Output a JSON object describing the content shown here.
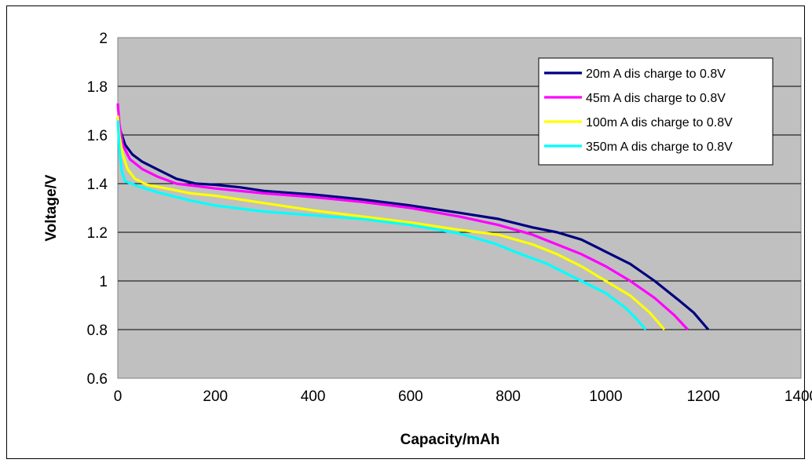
{
  "chart_data": {
    "type": "line",
    "xlabel": "Capacity/mAh",
    "ylabel": "Voltage/V",
    "xlim": [
      0,
      1400
    ],
    "ylim": [
      0.6,
      2
    ],
    "x_ticks": [
      "0",
      "200",
      "400",
      "600",
      "800",
      "1000",
      "1200",
      "1400"
    ],
    "y_ticks": [
      "0.6",
      "0.8",
      "1",
      "1.2",
      "1.4",
      "1.6",
      "1.8",
      "2"
    ],
    "grid": "horizontal",
    "plot_background": "#c0c0c0",
    "legend_position": "top-right",
    "series": [
      {
        "name": "20m A dis charge to 0.8V",
        "color": "#000080",
        "points": [
          [
            0,
            1.67
          ],
          [
            5,
            1.62
          ],
          [
            15,
            1.56
          ],
          [
            30,
            1.52
          ],
          [
            50,
            1.49
          ],
          [
            80,
            1.46
          ],
          [
            120,
            1.42
          ],
          [
            160,
            1.4
          ],
          [
            200,
            1.395
          ],
          [
            250,
            1.385
          ],
          [
            300,
            1.37
          ],
          [
            400,
            1.355
          ],
          [
            500,
            1.335
          ],
          [
            600,
            1.31
          ],
          [
            700,
            1.28
          ],
          [
            780,
            1.255
          ],
          [
            850,
            1.22
          ],
          [
            900,
            1.2
          ],
          [
            950,
            1.17
          ],
          [
            1000,
            1.12
          ],
          [
            1050,
            1.07
          ],
          [
            1100,
            1.0
          ],
          [
            1150,
            0.92
          ],
          [
            1180,
            0.87
          ],
          [
            1210,
            0.8
          ]
        ]
      },
      {
        "name": "45m A dis charge to 0.8V",
        "color": "#ff00ff",
        "points": [
          [
            0,
            1.73
          ],
          [
            3,
            1.65
          ],
          [
            10,
            1.56
          ],
          [
            25,
            1.5
          ],
          [
            50,
            1.46
          ],
          [
            80,
            1.43
          ],
          [
            120,
            1.4
          ],
          [
            200,
            1.38
          ],
          [
            300,
            1.36
          ],
          [
            400,
            1.345
          ],
          [
            500,
            1.325
          ],
          [
            600,
            1.3
          ],
          [
            700,
            1.265
          ],
          [
            780,
            1.23
          ],
          [
            850,
            1.19
          ],
          [
            900,
            1.15
          ],
          [
            950,
            1.11
          ],
          [
            1000,
            1.06
          ],
          [
            1050,
            1.0
          ],
          [
            1100,
            0.93
          ],
          [
            1140,
            0.86
          ],
          [
            1168,
            0.8
          ]
        ]
      },
      {
        "name": "100m A dis charge to 0.8V",
        "color": "#ffff00",
        "points": [
          [
            0,
            1.68
          ],
          [
            3,
            1.6
          ],
          [
            10,
            1.52
          ],
          [
            20,
            1.46
          ],
          [
            35,
            1.42
          ],
          [
            60,
            1.395
          ],
          [
            100,
            1.38
          ],
          [
            150,
            1.36
          ],
          [
            200,
            1.35
          ],
          [
            300,
            1.32
          ],
          [
            400,
            1.29
          ],
          [
            500,
            1.265
          ],
          [
            600,
            1.24
          ],
          [
            700,
            1.21
          ],
          [
            780,
            1.19
          ],
          [
            850,
            1.15
          ],
          [
            900,
            1.11
          ],
          [
            950,
            1.06
          ],
          [
            1000,
            1.0
          ],
          [
            1050,
            0.94
          ],
          [
            1090,
            0.87
          ],
          [
            1120,
            0.8
          ]
        ]
      },
      {
        "name": "350m A dis charge to 0.8V",
        "color": "#00ffff",
        "points": [
          [
            0,
            1.66
          ],
          [
            3,
            1.55
          ],
          [
            8,
            1.45
          ],
          [
            15,
            1.41
          ],
          [
            40,
            1.39
          ],
          [
            80,
            1.365
          ],
          [
            150,
            1.33
          ],
          [
            200,
            1.31
          ],
          [
            300,
            1.285
          ],
          [
            400,
            1.27
          ],
          [
            500,
            1.255
          ],
          [
            600,
            1.23
          ],
          [
            700,
            1.195
          ],
          [
            770,
            1.155
          ],
          [
            820,
            1.115
          ],
          [
            880,
            1.07
          ],
          [
            940,
            1.01
          ],
          [
            1000,
            0.95
          ],
          [
            1040,
            0.89
          ],
          [
            1060,
            0.85
          ],
          [
            1082,
            0.8
          ]
        ]
      }
    ]
  }
}
